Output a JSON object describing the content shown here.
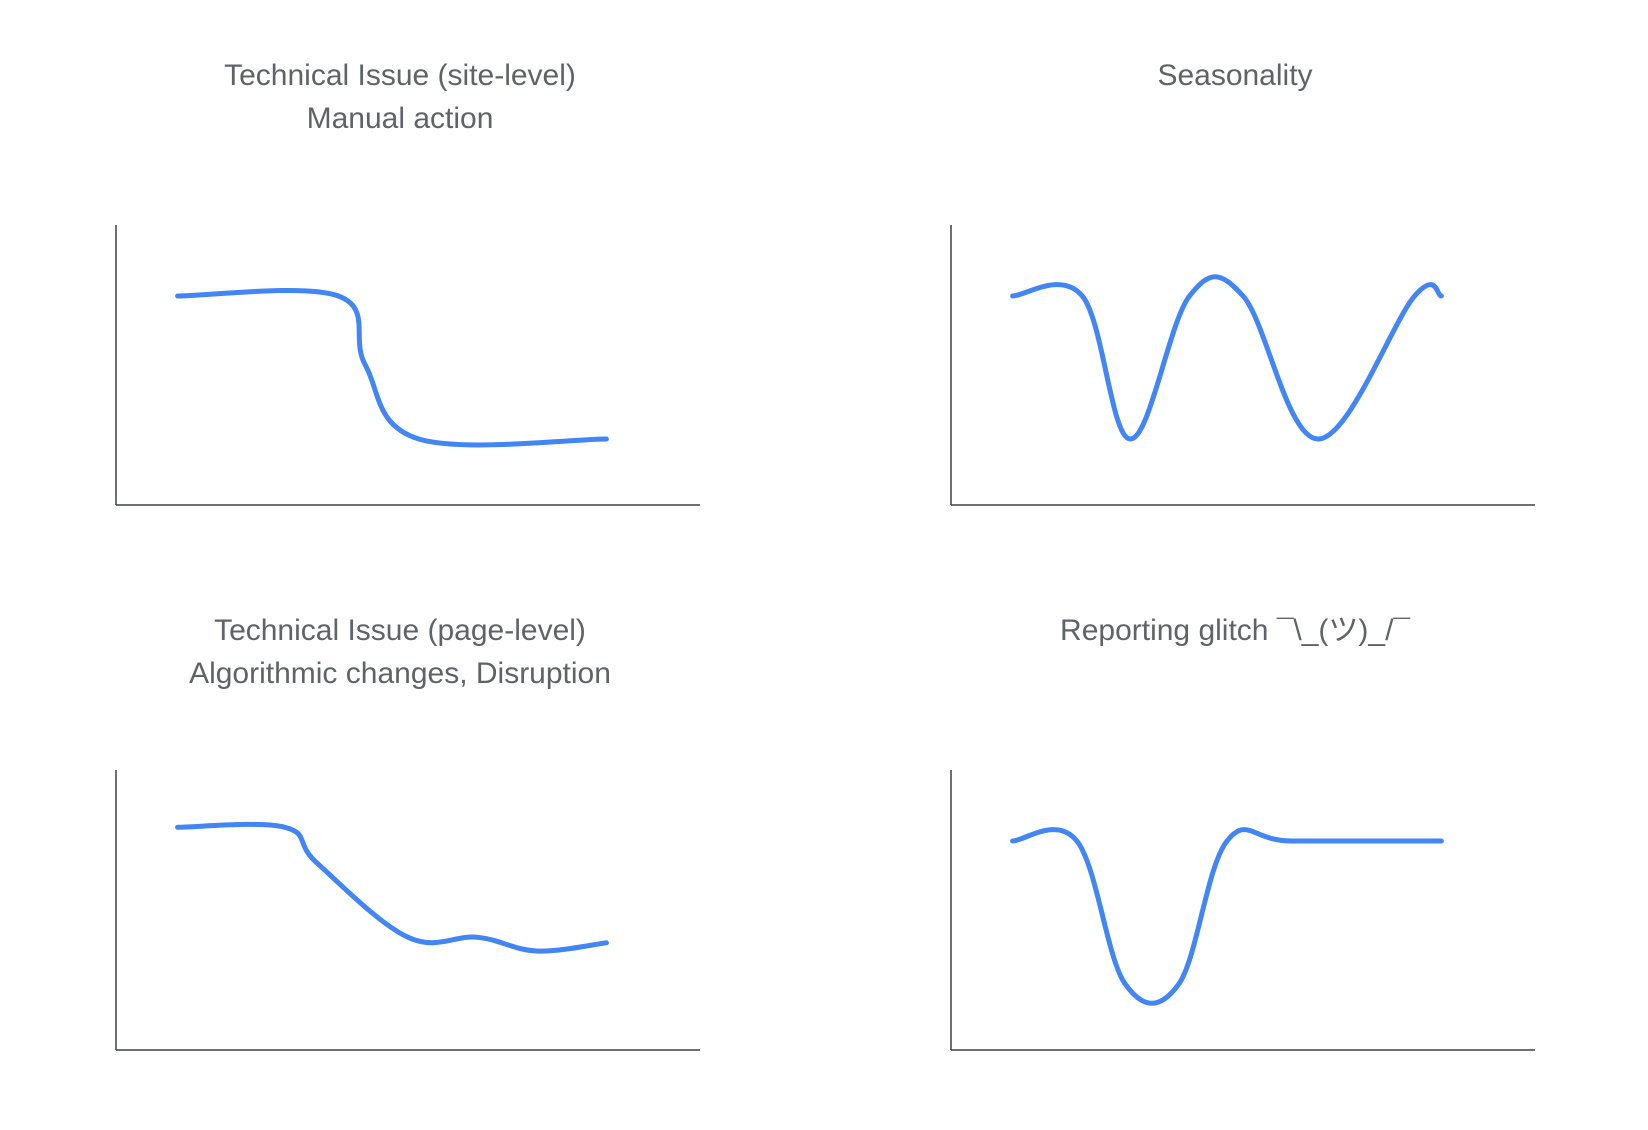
{
  "colors": {
    "line": "#4285f4",
    "axis": "#3c4043",
    "title": "#5f6368"
  },
  "chart_data": [
    {
      "type": "line",
      "title_lines": [
        "Technical Issue (site-level)",
        "Manual action"
      ],
      "xlabel": "",
      "ylabel": "",
      "xlim": [
        0,
        10
      ],
      "ylim": [
        0,
        10
      ],
      "grid": false,
      "series": [
        {
          "x": [
            1,
            4,
            4.5,
            5.5,
            9
          ],
          "y": [
            7.6,
            7.6,
            5.1,
            2.4,
            2.4
          ]
        }
      ]
    },
    {
      "type": "line",
      "title_lines": [
        "Seasonality"
      ],
      "xlabel": "",
      "ylabel": "",
      "xlim": [
        0,
        10
      ],
      "ylim": [
        0,
        10
      ],
      "grid": false,
      "series": [
        {
          "x": [
            1,
            2.3,
            3.2,
            4.3,
            5.3,
            6.7,
            8.5,
            9
          ],
          "y": [
            7.6,
            7.6,
            2.4,
            7.6,
            7.6,
            2.4,
            7.6,
            7.6
          ]
        }
      ]
    },
    {
      "type": "line",
      "title_lines": [
        "Technical Issue (page-level)",
        "Algorithmic changes, Disruption"
      ],
      "xlabel": "",
      "ylabel": "",
      "xlim": [
        0,
        10
      ],
      "ylim": [
        0,
        10
      ],
      "grid": false,
      "series": [
        {
          "x": [
            1,
            3,
            3.6,
            5.3,
            6.6,
            7.7,
            9
          ],
          "y": [
            8.1,
            8.1,
            6.8,
            4.1,
            4.1,
            3.6,
            3.9
          ]
        }
      ]
    },
    {
      "type": "line",
      "title_lines": [
        "Reporting glitch ¯\\_(ツ)_/¯"
      ],
      "xlabel": "",
      "ylabel": "",
      "xlim": [
        0,
        10
      ],
      "ylim": [
        0,
        10
      ],
      "grid": false,
      "series": [
        {
          "x": [
            1,
            2.2,
            3.1,
            4.1,
            5.0,
            6.2,
            9
          ],
          "y": [
            7.6,
            7.6,
            2.4,
            2.4,
            7.6,
            7.6,
            7.6
          ]
        }
      ]
    }
  ]
}
